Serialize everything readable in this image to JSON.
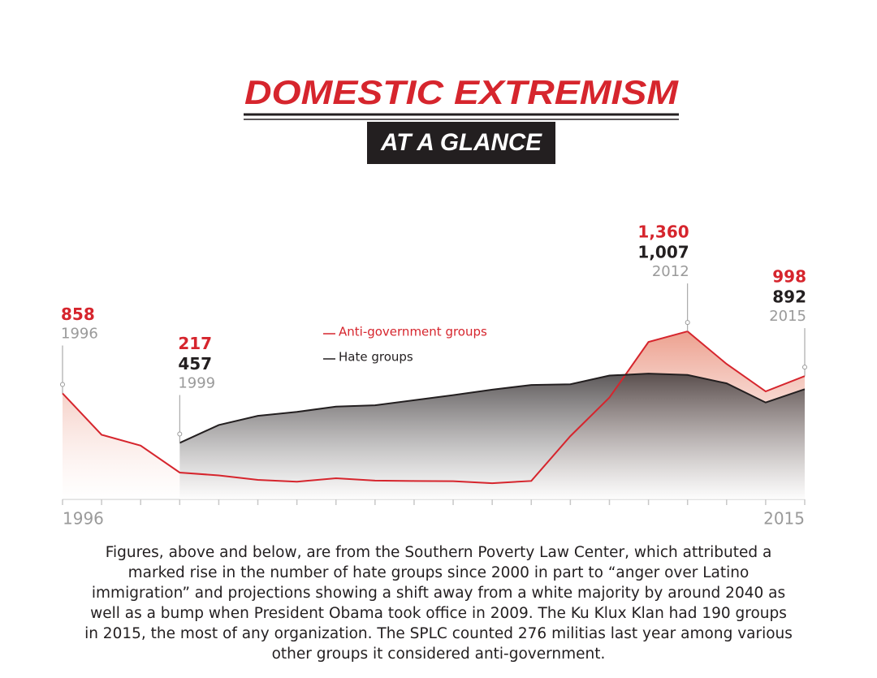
{
  "chart_data": {
    "type": "area",
    "title": "DOMESTIC EXTREMISM",
    "subtitle": "AT A GLANCE",
    "caption": "Figures, above and below, are from the Southern Poverty Law Center, which attributed a marked rise in the number of hate groups since 2000 in part to “anger over Latino immigration” and projections showing a shift away from a white majority by around 2040 as well as a bump when President Obama took office in 2009. The Ku Klux Klan had 190 groups in 2015, the most of any organization. The SPLC counted 276 militias last year among various other groups it considered anti-government.",
    "x": [
      1996,
      1997,
      1998,
      1999,
      2000,
      2001,
      2002,
      2003,
      2004,
      2005,
      2006,
      2007,
      2008,
      2009,
      2010,
      2011,
      2012,
      2013,
      2014,
      2015
    ],
    "xlim": [
      1996,
      2015
    ],
    "xticks": [
      1996,
      2015
    ],
    "ylim": [
      0,
      1400
    ],
    "series": [
      {
        "name": "Anti-government groups",
        "color": "#d6252d",
        "values": [
          858,
          523,
          435,
          217,
          194,
          158,
          143,
          171,
          152,
          149,
          147,
          131,
          149,
          512,
          824,
          1274,
          1360,
          1096,
          874,
          998
        ],
        "value_labels": [
          "858",
          null,
          null,
          "217",
          null,
          null,
          null,
          null,
          null,
          null,
          null,
          null,
          null,
          null,
          null,
          null,
          "1,360",
          null,
          null,
          "998"
        ]
      },
      {
        "name": "Hate groups",
        "color": "#231f20",
        "values": [
          null,
          null,
          null,
          457,
          602,
          676,
          708,
          751,
          762,
          803,
          844,
          888,
          926,
          932,
          1002,
          1018,
          1007,
          939,
          784,
          892
        ],
        "value_labels": [
          null,
          null,
          null,
          "457",
          null,
          null,
          null,
          null,
          null,
          null,
          null,
          null,
          null,
          null,
          null,
          null,
          "1,007",
          null,
          null,
          "892"
        ]
      }
    ]
  }
}
